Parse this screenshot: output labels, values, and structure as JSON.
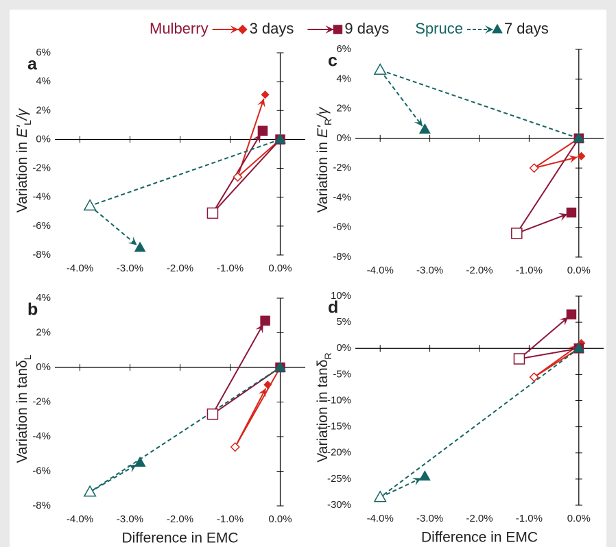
{
  "chart_data": {
    "type": "scatter",
    "legend": {
      "groups": [
        {
          "name": "Mulberry",
          "color": "#8e1538",
          "series": [
            {
              "name": "3 days",
              "color": "#d9261c",
              "marker": "diamond",
              "dash": false
            },
            {
              "name": "9 days",
              "color": "#8e1538",
              "marker": "square",
              "dash": false
            }
          ]
        },
        {
          "name": "Spruce",
          "color": "#146464",
          "series": [
            {
              "name": "7 days",
              "color": "#146464",
              "marker": "triangle",
              "dash": true
            }
          ]
        }
      ]
    },
    "panels": [
      {
        "letter": "a",
        "ylabel": {
          "pre": "Variation in ",
          "sym": "E'",
          "sub": "L",
          "post": "/γ",
          "italic": true
        },
        "xlim": [
          -4.5,
          0.5
        ],
        "ylim": [
          -8,
          6
        ],
        "xticks": [
          {
            "value": -4,
            "label": "-4.0%"
          },
          {
            "value": -3,
            "label": "-3.0%"
          },
          {
            "value": -2,
            "label": "-2.0%"
          },
          {
            "value": -1,
            "label": "-1.0%"
          },
          {
            "value": 0,
            "label": "0.0%"
          }
        ],
        "yticks": [
          {
            "value": 6,
            "label": "6%"
          },
          {
            "value": 4,
            "label": "4%"
          },
          {
            "value": 2,
            "label": "2%"
          },
          {
            "value": 0,
            "label": "0%"
          },
          {
            "value": -2,
            "label": "-2%"
          },
          {
            "value": -4,
            "label": "-4%"
          },
          {
            "value": -6,
            "label": "-6%"
          },
          {
            "value": -8,
            "label": "-8%"
          }
        ],
        "series": [
          {
            "x": [
              0,
              -0.85,
              -0.3
            ],
            "y": [
              0,
              -2.6,
              3.1
            ]
          },
          {
            "x": [
              0,
              -1.35,
              -0.35
            ],
            "y": [
              0,
              -5.1,
              0.6
            ]
          },
          {
            "x": [
              0,
              -3.8,
              -2.8
            ],
            "y": [
              0,
              -4.6,
              -7.5
            ]
          }
        ]
      },
      {
        "letter": "b",
        "ylabel": {
          "pre": "Variation in tan",
          "sym": "δ",
          "sub": "L",
          "italic": false
        },
        "xlabel": "Difference in EMC",
        "xlim": [
          -4.5,
          0.5
        ],
        "ylim": [
          -8,
          4
        ],
        "xticks": [
          {
            "value": -4,
            "label": "-4.0%"
          },
          {
            "value": -3,
            "label": "-3.0%"
          },
          {
            "value": -2,
            "label": "-2.0%"
          },
          {
            "value": -1,
            "label": "-1.0%"
          },
          {
            "value": 0,
            "label": "0.0%"
          }
        ],
        "yticks": [
          {
            "value": 4,
            "label": "4%"
          },
          {
            "value": 2,
            "label": "2%"
          },
          {
            "value": 0,
            "label": "0%"
          },
          {
            "value": -2,
            "label": "-2%"
          },
          {
            "value": -4,
            "label": "-4%"
          },
          {
            "value": -6,
            "label": "-6%"
          },
          {
            "value": -8,
            "label": "-8%"
          }
        ],
        "series": [
          {
            "x": [
              0,
              -0.9,
              -0.25
            ],
            "y": [
              0,
              -4.6,
              -1.0
            ]
          },
          {
            "x": [
              0,
              -1.35,
              -0.3
            ],
            "y": [
              0,
              -2.7,
              2.7
            ]
          },
          {
            "x": [
              0,
              -3.8,
              -2.8
            ],
            "y": [
              0,
              -7.2,
              -5.5
            ]
          }
        ]
      },
      {
        "letter": "c",
        "ylabel": {
          "pre": "Variation in ",
          "sym": "E'",
          "sub": "R",
          "post": "/γ",
          "italic": true
        },
        "xlim": [
          -4.5,
          0.5
        ],
        "ylim": [
          -8,
          6
        ],
        "xticks": [
          {
            "value": -4,
            "label": "-4.0%"
          },
          {
            "value": -3,
            "label": "-3.0%"
          },
          {
            "value": -2,
            "label": "-2.0%"
          },
          {
            "value": -1,
            "label": "-1.0%"
          },
          {
            "value": 0,
            "label": "0.0%"
          }
        ],
        "yticks": [
          {
            "value": 6,
            "label": "6%"
          },
          {
            "value": 4,
            "label": "4%"
          },
          {
            "value": 2,
            "label": "2%"
          },
          {
            "value": 0,
            "label": "0%"
          },
          {
            "value": -2,
            "label": "-2%"
          },
          {
            "value": -4,
            "label": "-4%"
          },
          {
            "value": -6,
            "label": "-6%"
          },
          {
            "value": -8,
            "label": "-8%"
          }
        ],
        "series": [
          {
            "x": [
              0,
              -0.9,
              0.05
            ],
            "y": [
              0,
              -2.0,
              -1.2
            ]
          },
          {
            "x": [
              0,
              -1.25,
              -0.15
            ],
            "y": [
              0,
              -6.4,
              -5.0
            ]
          },
          {
            "x": [
              0,
              -4.0,
              -3.1
            ],
            "y": [
              0,
              4.6,
              0.6
            ]
          }
        ]
      },
      {
        "letter": "d",
        "ylabel": {
          "pre": "Variation in tan",
          "sym": "δ",
          "sub": "R",
          "italic": false
        },
        "xlabel": "Difference in EMC",
        "xlim": [
          -4.5,
          0.5
        ],
        "ylim": [
          -30,
          10
        ],
        "xticks": [
          {
            "value": -4,
            "label": "-4.0%"
          },
          {
            "value": -3,
            "label": "-3.0%"
          },
          {
            "value": -2,
            "label": "-2.0%"
          },
          {
            "value": -1,
            "label": "-1.0%"
          },
          {
            "value": 0,
            "label": "0.0%"
          }
        ],
        "yticks": [
          {
            "value": 10,
            "label": "10%"
          },
          {
            "value": 5,
            "label": "5%"
          },
          {
            "value": 0,
            "label": "0%"
          },
          {
            "value": -5,
            "label": "-5%"
          },
          {
            "value": -10,
            "label": "-10%"
          },
          {
            "value": -15,
            "label": "-15%"
          },
          {
            "value": -20,
            "label": "-20%"
          },
          {
            "value": -25,
            "label": "-25%"
          },
          {
            "value": -30,
            "label": "-30%"
          }
        ],
        "series": [
          {
            "x": [
              0,
              -0.9,
              0.05
            ],
            "y": [
              0,
              -5.5,
              1.0
            ]
          },
          {
            "x": [
              0,
              -1.2,
              -0.15
            ],
            "y": [
              0,
              -2.0,
              6.5
            ]
          },
          {
            "x": [
              0,
              -4.0,
              -3.1
            ],
            "y": [
              0,
              -28.5,
              -24.5
            ]
          }
        ]
      }
    ]
  }
}
